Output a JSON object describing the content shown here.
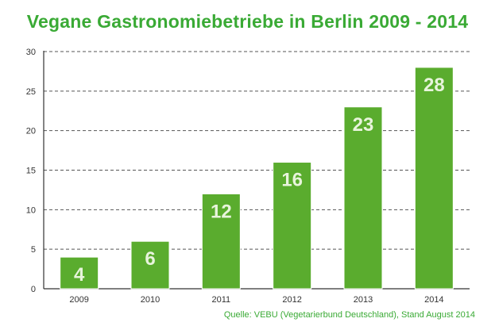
{
  "colors": {
    "title": "#3aaa35",
    "bar": "#5aac2e",
    "bar_outline": "#ffffff",
    "value_label": "#e8f4dc",
    "grid": "#555555",
    "axis": "#333333",
    "source": "#3aaa35"
  },
  "chart_data": {
    "type": "bar",
    "title": "Vegane Gastronomiebetriebe in Berlin 2009 - 2014",
    "source": "Quelle: VEBU (Vegetarierbund Deutschland), Stand August 2014",
    "xlabel": "",
    "ylabel": "",
    "categories": [
      "2009",
      "2010",
      "2011",
      "2012",
      "2013",
      "2014"
    ],
    "values": [
      4,
      6,
      12,
      16,
      23,
      28
    ],
    "data_labels": [
      "4",
      "6",
      "12",
      "16",
      "23",
      "28"
    ],
    "ylim": [
      0,
      30
    ],
    "yticks": [
      "0",
      "5",
      "10",
      "15",
      "20",
      "25",
      "30"
    ],
    "grid": true,
    "grid_style": "dashed",
    "legend": "none"
  }
}
